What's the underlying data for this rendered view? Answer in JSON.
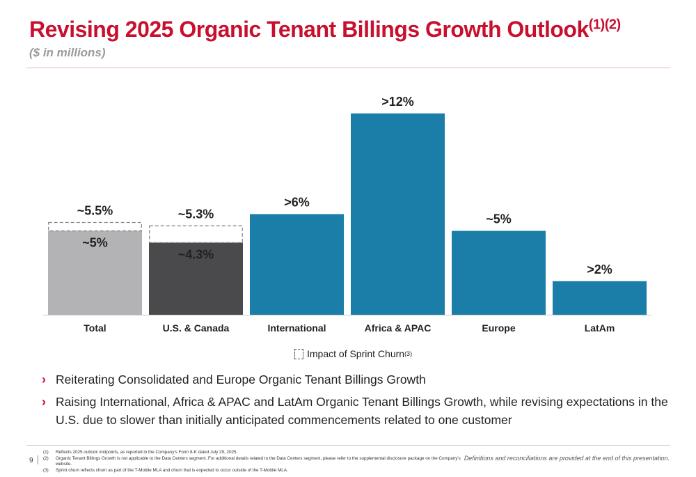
{
  "header": {
    "title": "Revising 2025 Organic Tenant Billings Growth Outlook",
    "title_superscript": "(1)(2)",
    "subtitle": "($ in millions)"
  },
  "chart_data": {
    "type": "bar",
    "categories": [
      "Total",
      "U.S. & Canada",
      "International",
      "Africa & APAC",
      "Europe",
      "LatAm"
    ],
    "values": [
      5,
      4.3,
      6,
      12,
      5,
      2
    ],
    "value_labels": [
      "~5%",
      "~4.3%",
      ">6%",
      ">12%",
      "~5%",
      ">2%"
    ],
    "sprint_churn_totals": [
      5.5,
      5.3,
      null,
      null,
      null,
      null
    ],
    "sprint_churn_labels": [
      "~5.5%",
      "~5.3%",
      null,
      null,
      null,
      null
    ],
    "colors": [
      "#b3b3b5",
      "#4a4a4c",
      "#1b7ea8",
      "#1b7ea8",
      "#1b7ea8",
      "#1b7ea8"
    ],
    "ylim": [
      0,
      13.2
    ],
    "grid": false,
    "legend": {
      "label": "Impact of Sprint Churn",
      "superscript": "(3)",
      "position": "bottom-center"
    }
  },
  "bullets": [
    "Reiterating Consolidated and Europe Organic Tenant Billings Growth",
    "Raising International, Africa & APAC and LatAm Organic Tenant Billings Growth, while revising expectations in the U.S. due to slower than initially anticipated commencements related to one customer"
  ],
  "footer": {
    "page_number": "9",
    "footnotes": [
      {
        "num": "(1)",
        "text": "Reflects 2025 outlook midpoints, as reported in the Company's Form 8-K dated July 29, 2025."
      },
      {
        "num": "(2)",
        "text": "Organic Tenant Billings Growth is not applicable to the Data Centers segment. For additional details related to the Data Centers segment, please refer to the supplemental disclosure package on the Company's website."
      },
      {
        "num": "(3)",
        "text": "Sprint churn reflects churn as part of the T-Mobile MLA and churn that is expected to occur outside of the T-Mobile MLA."
      }
    ],
    "definitions_note": "Definitions and reconciliations are provided at the end of this presentation."
  }
}
